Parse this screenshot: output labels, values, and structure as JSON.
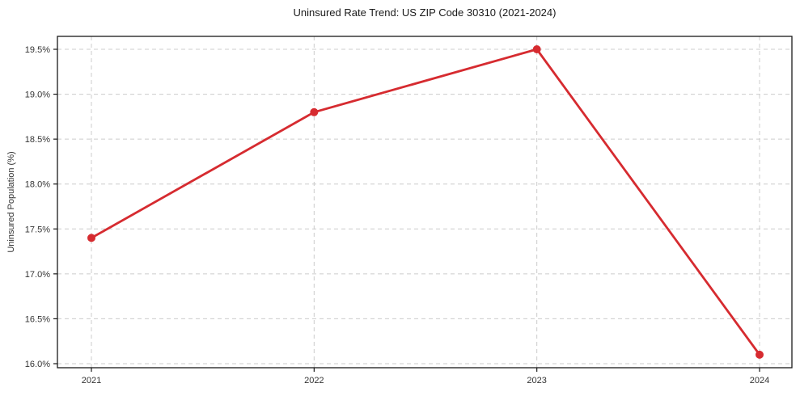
{
  "chart_data": {
    "type": "line",
    "title": "Uninsured Rate Trend: US ZIP Code 30310 (2021-2024)",
    "xlabel": "",
    "ylabel": "Uninsured Population (%)",
    "categories": [
      "2021",
      "2022",
      "2023",
      "2024"
    ],
    "values": [
      17.4,
      18.8,
      19.5,
      16.1
    ],
    "y_ticks": [
      {
        "value": 16.0,
        "label": "16.0%"
      },
      {
        "value": 16.5,
        "label": "16.5%"
      },
      {
        "value": 17.0,
        "label": "17.0%"
      },
      {
        "value": 17.5,
        "label": "17.5%"
      },
      {
        "value": 18.0,
        "label": "18.0%"
      },
      {
        "value": 18.5,
        "label": "18.5%"
      },
      {
        "value": 19.0,
        "label": "19.0%"
      },
      {
        "value": 19.5,
        "label": "19.5%"
      }
    ],
    "ylim": [
      15.95,
      19.65
    ],
    "grid": "dashed, both axes",
    "legend": "none",
    "marker": "filled circle",
    "colors": {
      "line": "#d62b30",
      "marker": "#d62b30",
      "grid": "#cccccc",
      "spine": "#1a1a1a",
      "tick_text": "#333333",
      "title_text": "#1a1a1a",
      "background": "#ffffff"
    }
  }
}
